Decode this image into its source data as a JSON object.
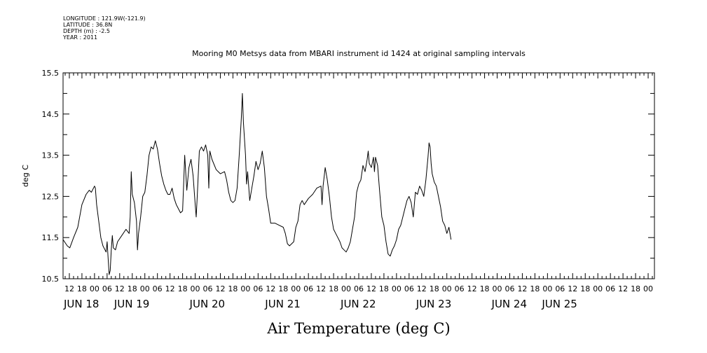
{
  "header": {
    "lines": [
      "LONGITUDE : 121.9W(-121.9)",
      "LATITUDE : 36.8N",
      "DEPTH (m) : -2.5",
      "YEAR : 2011"
    ]
  },
  "chart_data": {
    "type": "line",
    "title": "Mooring M0 Metsys data from MBARI instrument id 1424 at original sampling intervals",
    "xlabel": "Air Temperature (deg C)",
    "ylabel": "deg C",
    "ylim": [
      10.5,
      15.5
    ],
    "yticks": [
      10.5,
      11.5,
      12.5,
      13.5,
      14.5,
      15.5
    ],
    "ytick_labels": [
      "10.5",
      "11.5",
      "12.5",
      "13.5",
      "14.5",
      "15.5"
    ],
    "xlim_hours": [
      -15,
      267
    ],
    "x_hour_ticks": [
      {
        "h": -12,
        "label": "12"
      },
      {
        "h": -6,
        "label": "18"
      },
      {
        "h": 0,
        "label": "00"
      },
      {
        "h": 6,
        "label": "06"
      },
      {
        "h": 12,
        "label": "12"
      },
      {
        "h": 18,
        "label": "18"
      },
      {
        "h": 24,
        "label": "00"
      },
      {
        "h": 30,
        "label": "06"
      },
      {
        "h": 36,
        "label": "12"
      },
      {
        "h": 42,
        "label": "18"
      },
      {
        "h": 48,
        "label": "00"
      },
      {
        "h": 54,
        "label": "06"
      },
      {
        "h": 60,
        "label": "12"
      },
      {
        "h": 66,
        "label": "18"
      },
      {
        "h": 72,
        "label": "00"
      },
      {
        "h": 78,
        "label": "06"
      },
      {
        "h": 84,
        "label": "12"
      },
      {
        "h": 90,
        "label": "18"
      },
      {
        "h": 96,
        "label": "00"
      },
      {
        "h": 102,
        "label": "06"
      },
      {
        "h": 108,
        "label": "12"
      },
      {
        "h": 114,
        "label": "18"
      },
      {
        "h": 120,
        "label": "00"
      },
      {
        "h": 126,
        "label": "06"
      },
      {
        "h": 132,
        "label": "12"
      },
      {
        "h": 138,
        "label": "18"
      },
      {
        "h": 144,
        "label": "00"
      },
      {
        "h": 150,
        "label": "06"
      },
      {
        "h": 156,
        "label": "12"
      },
      {
        "h": 162,
        "label": "18"
      },
      {
        "h": 168,
        "label": "00"
      },
      {
        "h": 174,
        "label": "06"
      },
      {
        "h": 180,
        "label": "12"
      },
      {
        "h": 186,
        "label": "18"
      },
      {
        "h": 192,
        "label": "00"
      },
      {
        "h": 198,
        "label": "06"
      },
      {
        "h": 204,
        "label": "12"
      },
      {
        "h": 210,
        "label": "18"
      },
      {
        "h": 216,
        "label": "00"
      },
      {
        "h": 222,
        "label": "06"
      },
      {
        "h": 228,
        "label": "12"
      },
      {
        "h": 234,
        "label": "18"
      },
      {
        "h": 240,
        "label": "00"
      },
      {
        "h": 246,
        "label": "06"
      },
      {
        "h": 252,
        "label": "12"
      },
      {
        "h": 258,
        "label": "18"
      },
      {
        "h": 264,
        "label": "00"
      }
    ],
    "x_day_labels": [
      {
        "h": -12,
        "label": "JUN 18"
      },
      {
        "h": 12,
        "label": "JUN 19"
      },
      {
        "h": 48,
        "label": "JUN 20"
      },
      {
        "h": 84,
        "label": "JUN 21"
      },
      {
        "h": 120,
        "label": "JUN 22"
      },
      {
        "h": 156,
        "label": "JUN 23"
      },
      {
        "h": 192,
        "label": "JUN 24"
      },
      {
        "h": 216,
        "label": "JUN 25"
      }
    ],
    "series": [
      {
        "color": "#000000",
        "points": [
          [
            -15,
            11.45
          ],
          [
            -13,
            11.3
          ],
          [
            -11.8,
            11.25
          ],
          [
            -10,
            11.5
          ],
          [
            -8,
            11.75
          ],
          [
            -6,
            12.3
          ],
          [
            -4,
            12.55
          ],
          [
            -2.5,
            12.65
          ],
          [
            -1.5,
            12.6
          ],
          [
            0,
            12.75
          ],
          [
            0.4,
            12.7
          ],
          [
            1,
            12.3
          ],
          [
            2,
            11.9
          ],
          [
            3,
            11.5
          ],
          [
            4,
            11.3
          ],
          [
            5.5,
            11.15
          ],
          [
            6,
            11.4
          ],
          [
            6.5,
            11.0
          ],
          [
            7,
            10.6
          ],
          [
            7.5,
            10.7
          ],
          [
            8,
            11.2
          ],
          [
            8.5,
            11.55
          ],
          [
            9,
            11.25
          ],
          [
            10,
            11.2
          ],
          [
            11,
            11.4
          ],
          [
            13,
            11.55
          ],
          [
            15,
            11.7
          ],
          [
            16.5,
            11.6
          ],
          [
            17,
            12.0
          ],
          [
            17.5,
            13.1
          ],
          [
            18,
            12.55
          ],
          [
            19,
            12.35
          ],
          [
            20,
            11.9
          ],
          [
            20.5,
            11.2
          ],
          [
            21,
            11.6
          ],
          [
            22,
            12.0
          ],
          [
            23,
            12.5
          ],
          [
            24,
            12.6
          ],
          [
            25,
            13.0
          ],
          [
            26,
            13.5
          ],
          [
            27,
            13.7
          ],
          [
            28,
            13.65
          ],
          [
            29,
            13.85
          ],
          [
            30,
            13.65
          ],
          [
            31,
            13.3
          ],
          [
            32,
            13.0
          ],
          [
            33,
            12.8
          ],
          [
            34,
            12.65
          ],
          [
            35,
            12.55
          ],
          [
            36,
            12.55
          ],
          [
            37,
            12.7
          ],
          [
            38,
            12.45
          ],
          [
            39,
            12.3
          ],
          [
            40,
            12.2
          ],
          [
            41,
            12.1
          ],
          [
            42,
            12.15
          ],
          [
            42.5,
            12.8
          ],
          [
            43,
            13.5
          ],
          [
            44,
            12.65
          ],
          [
            45,
            13.2
          ],
          [
            46,
            13.4
          ],
          [
            47,
            13.0
          ],
          [
            48,
            12.3
          ],
          [
            48.5,
            12.0
          ],
          [
            49,
            12.5
          ],
          [
            50,
            13.6
          ],
          [
            51,
            13.7
          ],
          [
            52,
            13.6
          ],
          [
            53,
            13.75
          ],
          [
            54,
            13.5
          ],
          [
            54.5,
            12.7
          ],
          [
            55,
            13.6
          ],
          [
            56,
            13.4
          ],
          [
            58,
            13.15
          ],
          [
            60,
            13.05
          ],
          [
            62,
            13.1
          ],
          [
            63,
            12.9
          ],
          [
            64,
            12.6
          ],
          [
            65,
            12.4
          ],
          [
            66,
            12.35
          ],
          [
            67,
            12.4
          ],
          [
            68,
            12.7
          ],
          [
            69,
            13.5
          ],
          [
            70,
            14.4
          ],
          [
            70.5,
            15.0
          ],
          [
            71,
            14.3
          ],
          [
            72,
            13.5
          ],
          [
            72.5,
            12.8
          ],
          [
            73,
            13.1
          ],
          [
            74,
            12.4
          ],
          [
            75,
            12.7
          ],
          [
            76,
            13.0
          ],
          [
            77,
            13.35
          ],
          [
            78,
            13.15
          ],
          [
            79,
            13.3
          ],
          [
            80,
            13.6
          ],
          [
            81,
            13.2
          ],
          [
            82,
            12.5
          ],
          [
            83,
            12.2
          ],
          [
            84,
            11.85
          ],
          [
            86,
            11.85
          ],
          [
            88,
            11.8
          ],
          [
            90,
            11.75
          ],
          [
            91,
            11.6
          ],
          [
            92,
            11.35
          ],
          [
            93,
            11.3
          ],
          [
            95,
            11.4
          ],
          [
            96,
            11.75
          ],
          [
            97,
            11.9
          ],
          [
            98,
            12.3
          ],
          [
            99,
            12.4
          ],
          [
            100,
            12.3
          ],
          [
            102,
            12.45
          ],
          [
            104,
            12.55
          ],
          [
            106,
            12.7
          ],
          [
            108,
            12.75
          ],
          [
            108.5,
            12.3
          ],
          [
            109,
            12.75
          ],
          [
            110,
            13.2
          ],
          [
            111,
            12.9
          ],
          [
            112,
            12.5
          ],
          [
            113,
            12.0
          ],
          [
            114,
            11.7
          ],
          [
            115,
            11.6
          ],
          [
            116,
            11.5
          ],
          [
            117,
            11.4
          ],
          [
            118,
            11.25
          ],
          [
            119,
            11.2
          ],
          [
            120,
            11.15
          ],
          [
            121,
            11.25
          ],
          [
            122,
            11.4
          ],
          [
            123,
            11.7
          ],
          [
            124,
            12.0
          ],
          [
            125,
            12.6
          ],
          [
            126,
            12.8
          ],
          [
            127,
            12.9
          ],
          [
            128,
            13.25
          ],
          [
            129,
            13.1
          ],
          [
            130,
            13.4
          ],
          [
            130.5,
            13.6
          ],
          [
            131,
            13.3
          ],
          [
            132,
            13.2
          ],
          [
            133,
            13.45
          ],
          [
            133.5,
            13.1
          ],
          [
            134,
            13.45
          ],
          [
            135,
            13.25
          ],
          [
            136,
            12.6
          ],
          [
            137,
            12.0
          ],
          [
            138,
            11.8
          ],
          [
            139,
            11.4
          ],
          [
            140,
            11.1
          ],
          [
            141,
            11.05
          ],
          [
            142,
            11.2
          ],
          [
            143,
            11.3
          ],
          [
            144,
            11.45
          ],
          [
            145,
            11.7
          ],
          [
            146,
            11.8
          ],
          [
            147,
            12.0
          ],
          [
            148,
            12.2
          ],
          [
            149,
            12.4
          ],
          [
            150,
            12.5
          ],
          [
            151,
            12.35
          ],
          [
            152,
            12.0
          ],
          [
            153,
            12.6
          ],
          [
            154,
            12.55
          ],
          [
            155,
            12.75
          ],
          [
            156,
            12.65
          ],
          [
            157,
            12.5
          ],
          [
            158,
            12.9
          ],
          [
            159,
            13.45
          ],
          [
            159.5,
            13.8
          ],
          [
            160,
            13.7
          ],
          [
            160.5,
            13.3
          ],
          [
            161,
            13.05
          ],
          [
            162,
            12.85
          ],
          [
            163,
            12.75
          ],
          [
            164,
            12.5
          ],
          [
            165,
            12.25
          ],
          [
            166,
            11.9
          ],
          [
            167,
            11.8
          ],
          [
            168,
            11.6
          ],
          [
            169,
            11.75
          ],
          [
            170,
            11.45
          ]
        ]
      }
    ]
  }
}
